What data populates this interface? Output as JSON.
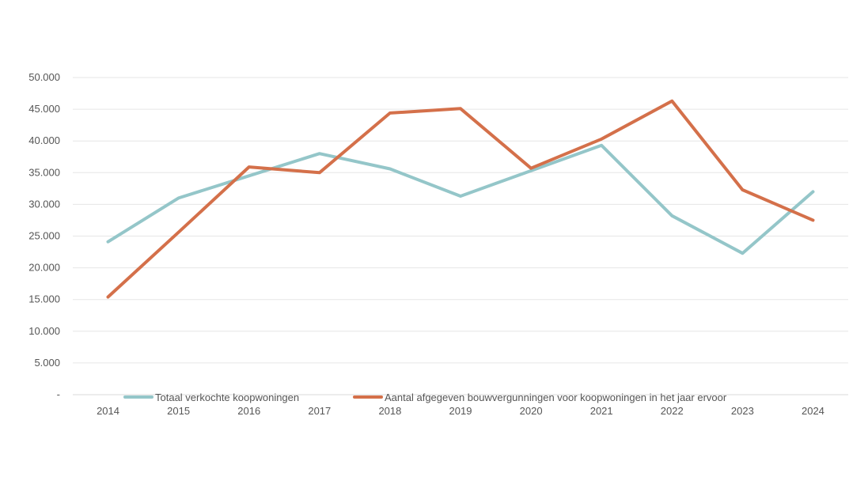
{
  "chart_data": {
    "type": "line",
    "categories": [
      "2014",
      "2015",
      "2016",
      "2017",
      "2018",
      "2019",
      "2020",
      "2021",
      "2022",
      "2023",
      "2024"
    ],
    "y_tick_labels": [
      "-",
      "5.000",
      "10.000",
      "15.000",
      "20.000",
      "25.000",
      "30.000",
      "35.000",
      "40.000",
      "45.000",
      "50.000"
    ],
    "ylim": [
      0,
      50000
    ],
    "grid": true,
    "legend_position": "bottom",
    "series": [
      {
        "name": "Totaal verkochte koopwoningen",
        "color": "#94c6c9",
        "values": [
          24100,
          31000,
          34500,
          38000,
          35600,
          31300,
          35300,
          39300,
          28200,
          22300,
          32000
        ]
      },
      {
        "name": "Aantal afgegeven bouwvergunningen voor koopwoningen in het jaar ervoor",
        "color": "#d4704a",
        "values": [
          15400,
          25600,
          35900,
          35000,
          44400,
          45100,
          35700,
          40300,
          46300,
          32300,
          27500
        ]
      }
    ]
  }
}
